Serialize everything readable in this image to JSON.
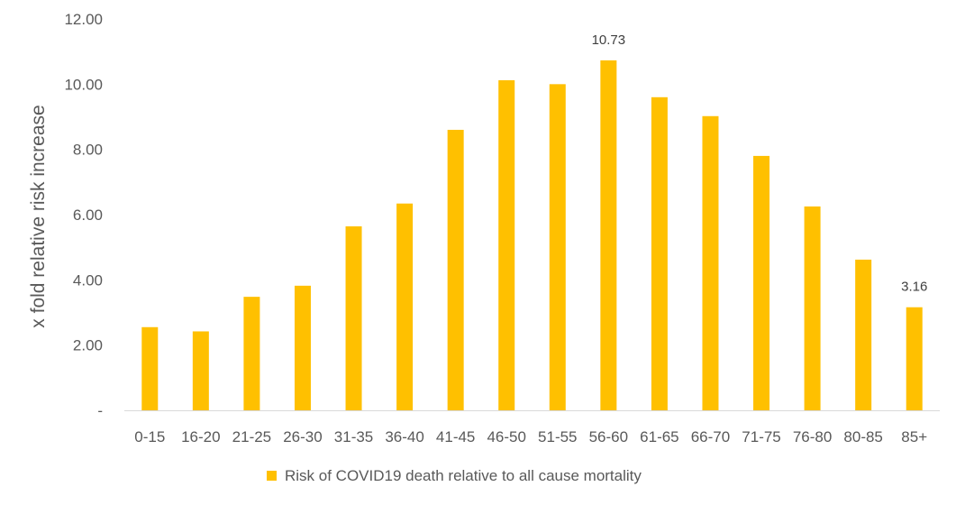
{
  "chart_data": {
    "type": "bar",
    "categories": [
      "0-15",
      "16-20",
      "21-25",
      "26-30",
      "31-35",
      "36-40",
      "41-45",
      "46-50",
      "51-55",
      "56-60",
      "61-65",
      "66-70",
      "71-75",
      "76-80",
      "80-85",
      "85+"
    ],
    "series": [
      {
        "name": "Risk of COVID19 death relative to all cause mortality",
        "values": [
          2.55,
          2.42,
          3.48,
          3.82,
          5.64,
          6.34,
          8.6,
          10.12,
          10.0,
          10.73,
          9.6,
          9.02,
          7.8,
          6.25,
          4.62,
          3.16
        ],
        "color": "#FFC000"
      }
    ],
    "data_labels": [
      {
        "index": 9,
        "text": "10.73"
      },
      {
        "index": 15,
        "text": "3.16"
      }
    ],
    "title": "",
    "xlabel": "",
    "ylabel": "x fold relative risk increase",
    "ylim": [
      0,
      12
    ],
    "yticks": [
      {
        "value": 0,
        "label": "-"
      },
      {
        "value": 2,
        "label": "2.00"
      },
      {
        "value": 4,
        "label": "4.00"
      },
      {
        "value": 6,
        "label": "6.00"
      },
      {
        "value": 8,
        "label": "8.00"
      },
      {
        "value": 10,
        "label": "10.00"
      },
      {
        "value": 12,
        "label": "12.00"
      }
    ],
    "grid": false,
    "legend": "bottom",
    "axis_color": "#d9d9d9"
  }
}
